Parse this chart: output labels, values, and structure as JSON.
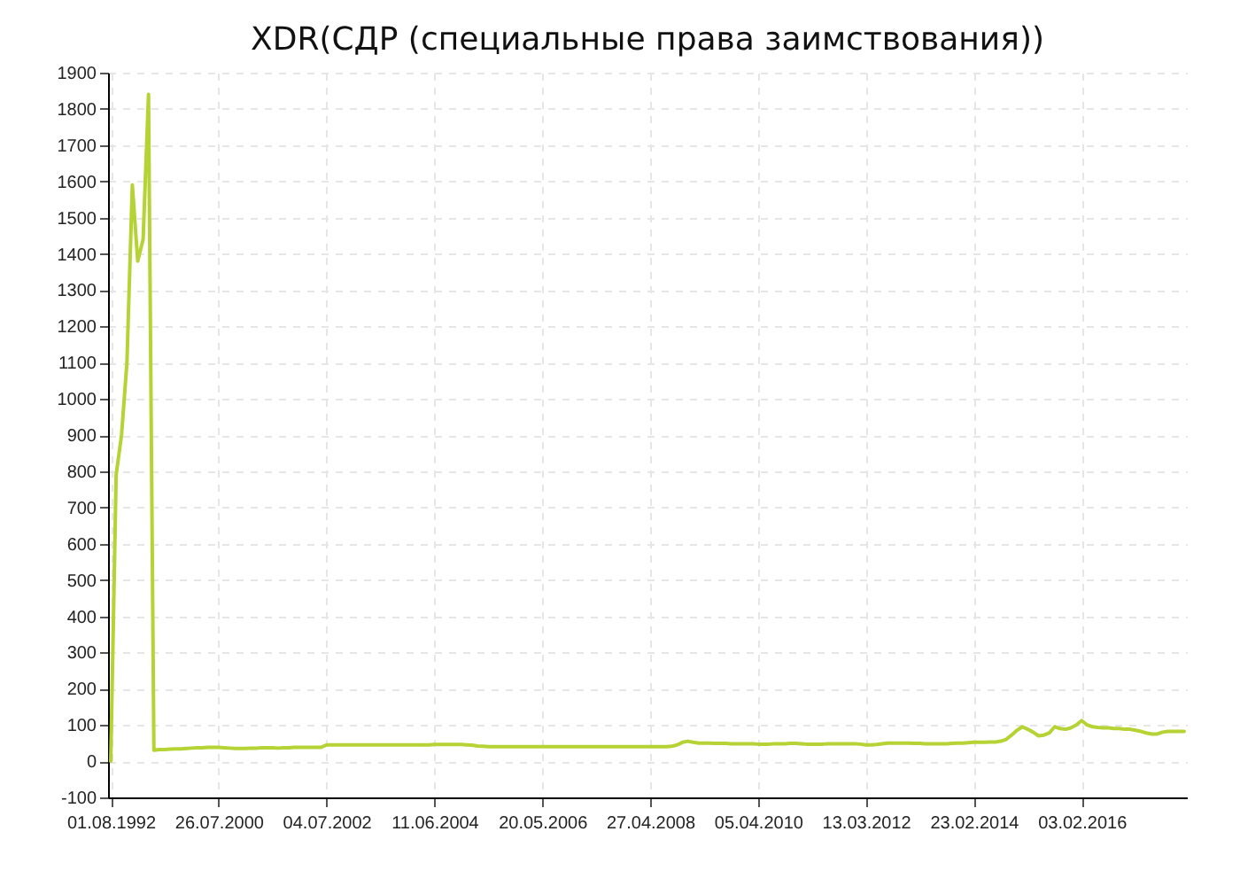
{
  "chart_data": {
    "type": "line",
    "title": "XDR(СДР (специальные права заимствования))",
    "categories": [
      "01.08.1992",
      null,
      null,
      null,
      null,
      null,
      null,
      null,
      null,
      null,
      null,
      null,
      null,
      null,
      null,
      null,
      null,
      null,
      null,
      null,
      "26.07.2000",
      null,
      null,
      null,
      null,
      null,
      null,
      null,
      null,
      null,
      null,
      null,
      null,
      null,
      null,
      null,
      null,
      null,
      null,
      null,
      "04.07.2002",
      null,
      null,
      null,
      null,
      null,
      null,
      null,
      null,
      null,
      null,
      null,
      null,
      null,
      null,
      null,
      null,
      null,
      null,
      null,
      "11.06.2004",
      null,
      null,
      null,
      null,
      null,
      null,
      null,
      null,
      null,
      null,
      null,
      null,
      null,
      null,
      null,
      null,
      null,
      null,
      null,
      "20.05.2006",
      null,
      null,
      null,
      null,
      null,
      null,
      null,
      null,
      null,
      null,
      null,
      null,
      null,
      null,
      null,
      null,
      null,
      null,
      null,
      "27.04.2008",
      null,
      null,
      null,
      null,
      null,
      null,
      null,
      null,
      null,
      null,
      null,
      null,
      null,
      null,
      null,
      null,
      null,
      null,
      null,
      "05.04.2010",
      null,
      null,
      null,
      null,
      null,
      null,
      null,
      null,
      null,
      null,
      null,
      null,
      null,
      null,
      null,
      null,
      null,
      null,
      null,
      "13.03.2012",
      null,
      null,
      null,
      null,
      null,
      null,
      null,
      null,
      null,
      null,
      null,
      null,
      null,
      null,
      null,
      null,
      null,
      null,
      null,
      "23.02.2014",
      null,
      null,
      null,
      null,
      null,
      null,
      null,
      null,
      null,
      null,
      null,
      null,
      null,
      null,
      null,
      null,
      null,
      null,
      null,
      "03.02.2016",
      null,
      null,
      null,
      null,
      null,
      null,
      null,
      null,
      null,
      null,
      null,
      null,
      null,
      null,
      null,
      null,
      null,
      null,
      null
    ],
    "series": [
      {
        "color": "#b5d334",
        "values": [
          0,
          790,
          900,
          1100,
          1590,
          1380,
          1440,
          1840,
          30,
          32,
          32,
          33,
          34,
          34,
          35,
          36,
          37,
          37,
          38,
          38,
          38,
          37,
          36,
          35,
          35,
          35,
          36,
          36,
          37,
          37,
          37,
          36,
          37,
          37,
          38,
          38,
          38,
          38,
          38,
          38,
          45,
          45,
          45,
          45,
          45,
          45,
          45,
          45,
          45,
          45,
          45,
          45,
          45,
          45,
          45,
          45,
          45,
          45,
          45,
          45,
          46,
          46,
          46,
          46,
          46,
          46,
          45,
          44,
          42,
          41,
          40,
          40,
          40,
          40,
          40,
          40,
          40,
          40,
          40,
          40,
          40,
          40,
          40,
          40,
          40,
          40,
          40,
          40,
          40,
          40,
          40,
          40,
          40,
          40,
          40,
          40,
          40,
          40,
          40,
          40,
          40,
          40,
          40,
          40,
          41,
          45,
          52,
          55,
          52,
          50,
          50,
          50,
          49,
          49,
          49,
          48,
          48,
          48,
          48,
          48,
          47,
          47,
          47,
          48,
          48,
          48,
          49,
          49,
          48,
          47,
          47,
          47,
          47,
          48,
          48,
          48,
          48,
          48,
          48,
          47,
          45,
          45,
          46,
          48,
          50,
          50,
          50,
          50,
          50,
          49,
          49,
          48,
          48,
          48,
          48,
          48,
          49,
          50,
          50,
          51,
          52,
          52,
          52,
          53,
          53,
          55,
          60,
          72,
          85,
          95,
          88,
          80,
          70,
          72,
          78,
          95,
          90,
          88,
          92,
          100,
          112,
          100,
          95,
          93,
          92,
          92,
          90,
          90,
          88,
          88,
          85,
          82,
          78,
          75,
          75,
          80,
          82,
          82,
          82,
          82
        ]
      }
    ],
    "ylim": [
      -100,
      1900
    ],
    "yticks": [
      -100,
      0,
      100,
      200,
      300,
      400,
      500,
      600,
      700,
      800,
      900,
      1000,
      1100,
      1200,
      1300,
      1400,
      1500,
      1600,
      1700,
      1800,
      1900
    ],
    "grid": true,
    "marker": "none",
    "line_style": "solid"
  }
}
